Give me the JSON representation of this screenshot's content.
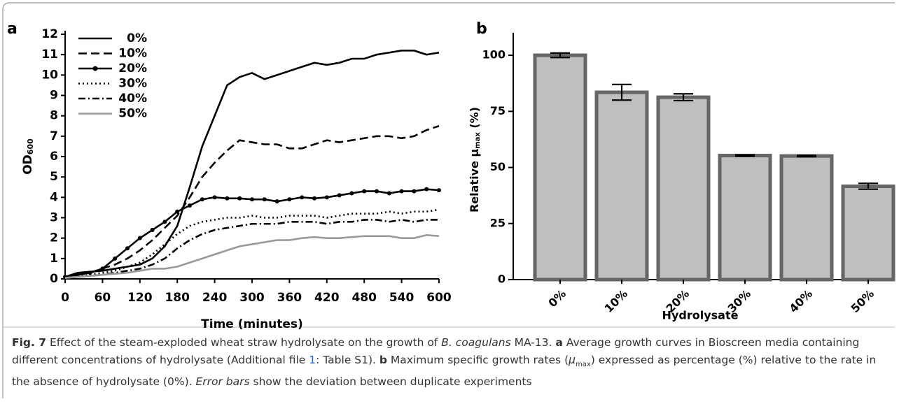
{
  "chart_data": [
    {
      "type": "line",
      "panel": "a",
      "x_label": "Time (minutes)",
      "y_label": [
        "OD",
        "600"
      ],
      "xlim": [
        0,
        600
      ],
      "xticks": [
        0,
        60,
        120,
        180,
        240,
        300,
        360,
        420,
        480,
        540,
        600
      ],
      "ylim": [
        0,
        12
      ],
      "yticks": [
        0,
        1,
        2,
        3,
        4,
        5,
        6,
        7,
        8,
        9,
        10,
        11,
        12
      ],
      "legend": "upper-left",
      "x": [
        0,
        20,
        40,
        60,
        80,
        100,
        120,
        140,
        160,
        180,
        200,
        220,
        240,
        260,
        280,
        300,
        320,
        340,
        360,
        380,
        400,
        420,
        440,
        460,
        480,
        500,
        520,
        540,
        560,
        580,
        600
      ],
      "series": [
        {
          "name": "0%",
          "color": "#000000",
          "style": "solid",
          "values": [
            0.1,
            0.3,
            0.35,
            0.4,
            0.5,
            0.6,
            0.7,
            1.0,
            1.6,
            2.6,
            4.5,
            6.5,
            8.0,
            9.5,
            9.9,
            10.1,
            9.8,
            10.0,
            10.2,
            10.4,
            10.6,
            10.5,
            10.6,
            10.8,
            10.8,
            11.0,
            11.1,
            11.2,
            11.2,
            11.0,
            11.1
          ]
        },
        {
          "name": "10%",
          "color": "#000000",
          "style": "dashed",
          "values": [
            0.1,
            0.2,
            0.3,
            0.5,
            0.7,
            1.0,
            1.4,
            1.9,
            2.5,
            3.1,
            4.0,
            5.0,
            5.7,
            6.3,
            6.8,
            6.7,
            6.6,
            6.6,
            6.4,
            6.4,
            6.6,
            6.8,
            6.7,
            6.8,
            6.9,
            7.0,
            7.0,
            6.9,
            7.0,
            7.3,
            7.5
          ]
        },
        {
          "name": "20%",
          "color": "#000000",
          "style": "solid",
          "marker": "circle",
          "values": [
            0.1,
            0.2,
            0.3,
            0.5,
            1.0,
            1.5,
            2.0,
            2.4,
            2.8,
            3.3,
            3.6,
            3.9,
            4.0,
            3.95,
            3.95,
            3.9,
            3.9,
            3.8,
            3.9,
            4.0,
            3.95,
            4.0,
            4.1,
            4.2,
            4.3,
            4.3,
            4.2,
            4.3,
            4.3,
            4.4,
            4.35
          ]
        },
        {
          "name": "30%",
          "color": "#000000",
          "style": "dotted",
          "values": [
            0.05,
            0.1,
            0.2,
            0.3,
            0.4,
            0.6,
            0.8,
            1.2,
            1.7,
            2.2,
            2.6,
            2.8,
            2.9,
            3.0,
            3.0,
            3.1,
            3.0,
            3.0,
            3.1,
            3.1,
            3.1,
            3.0,
            3.1,
            3.2,
            3.2,
            3.2,
            3.3,
            3.2,
            3.3,
            3.3,
            3.4
          ]
        },
        {
          "name": "40%",
          "color": "#000000",
          "style": "dashdot",
          "values": [
            0.05,
            0.1,
            0.15,
            0.2,
            0.3,
            0.4,
            0.5,
            0.7,
            1.0,
            1.5,
            1.9,
            2.2,
            2.4,
            2.5,
            2.6,
            2.7,
            2.7,
            2.7,
            2.8,
            2.8,
            2.8,
            2.7,
            2.8,
            2.8,
            2.9,
            2.9,
            2.8,
            2.9,
            2.8,
            2.9,
            2.9
          ]
        },
        {
          "name": "50%",
          "color": "#999999",
          "style": "solid",
          "values": [
            0.05,
            0.1,
            0.15,
            0.2,
            0.25,
            0.3,
            0.4,
            0.5,
            0.5,
            0.6,
            0.8,
            1.0,
            1.2,
            1.4,
            1.6,
            1.7,
            1.8,
            1.9,
            1.9,
            2.0,
            2.05,
            2.0,
            2.0,
            2.05,
            2.1,
            2.1,
            2.1,
            2.0,
            2.0,
            2.15,
            2.1
          ]
        }
      ]
    },
    {
      "type": "bar",
      "panel": "b",
      "x_label": "Hydrolysate",
      "y_label": [
        "Relative μ",
        "max",
        " (%)"
      ],
      "categories": [
        "0%",
        "10%",
        "20%",
        "30%",
        "40%",
        "50%"
      ],
      "values": [
        100,
        83.5,
        81.3,
        55.3,
        55.1,
        41.6
      ],
      "errors": [
        1,
        3.5,
        1.5,
        0.3,
        0.3,
        1.3
      ],
      "color": "#bfbfbf",
      "edge_color": "#666666",
      "ylim": [
        0,
        110
      ],
      "yticks": [
        0,
        25,
        50,
        75,
        100
      ]
    }
  ],
  "caption": [
    {
      "text": "Fig. 7",
      "style": "bold"
    },
    {
      "text": "  Effect of the steam-exploded wheat straw hydrolysate on the growth of ",
      "style": "normal"
    },
    {
      "text": "B. coagulans",
      "style": "italic"
    },
    {
      "text": " MA-13. ",
      "style": "normal"
    },
    {
      "text": "a",
      "style": "bold"
    },
    {
      "text": " Average growth curves in Bioscreen media containing different concentrations of hydrolysate (Additional file ",
      "style": "normal"
    },
    {
      "text": "1",
      "style": "link"
    },
    {
      "text": ": Table S1). ",
      "style": "normal"
    },
    {
      "text": "b",
      "style": "bold"
    },
    {
      "text": " Maximum specific growth rates (",
      "style": "normal"
    },
    {
      "text": "μ",
      "style": "italic"
    },
    {
      "text": "max",
      "style": "sub"
    },
    {
      "text": ") expressed as percentage (%) relative to the rate in the absence of hydrolysate (0%). ",
      "style": "normal"
    },
    {
      "text": "Error bars",
      "style": "italic"
    },
    {
      "text": " show the deviation between duplicate experiments",
      "style": "normal"
    }
  ]
}
